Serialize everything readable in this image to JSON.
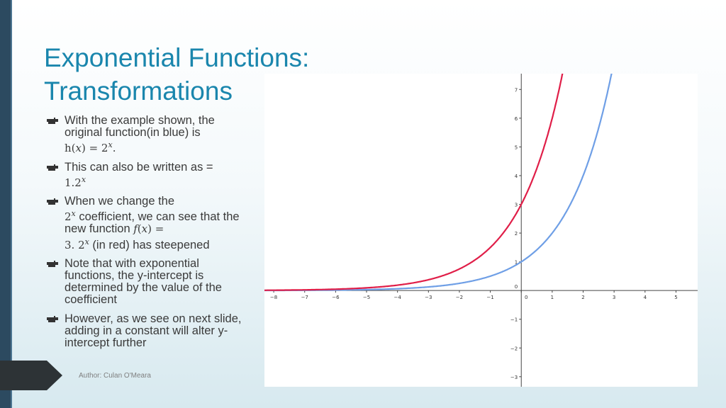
{
  "slide": {
    "title_lines": [
      "Exponential Functions:",
      "Transformations"
    ],
    "author": "Author: Culan O'Meara",
    "bullets": [
      {
        "text": "With the example shown, the original function(in blue) is",
        "math": "h(𝑥) = 2",
        "math_sup": "𝑥",
        "math_after": "."
      },
      {
        "text": "This can also be written as = ",
        "math": "1.2",
        "math_sup": "𝑥",
        "math_after": ""
      },
      {
        "parts": [
          "When we change the ",
          "2",
          "𝑥",
          " coefficient, we can see that the new function ",
          "𝑓(𝑥) =",
          " 3. 2",
          "𝑥",
          " (in red) has steepened"
        ]
      },
      {
        "text": "Note that with exponential functions, the y-intercept is determined by the value of the coefficient"
      },
      {
        "text": "However, as we see on next slide, adding in a constant will alter y-intercept further"
      }
    ]
  },
  "colors": {
    "accent": "#1a86ad",
    "sidebar": "#2c4a60",
    "blue_curve": "#6f9fe6",
    "red_curve": "#e01e48"
  },
  "icons": {
    "bullet": "hand-pointing-right-icon"
  },
  "chart_data": {
    "type": "line",
    "x_ticks": [
      "−8",
      "−7",
      "−6",
      "−5",
      "−4",
      "−3",
      "−2",
      "−1",
      "0",
      "1",
      "2",
      "3",
      "4",
      "5"
    ],
    "y_ticks": [
      "−3",
      "−2",
      "−1",
      "0",
      "1",
      "2",
      "3",
      "4",
      "5",
      "6",
      "7"
    ],
    "xlim": [
      -8.3,
      5.7
    ],
    "ylim": [
      -3.35,
      7.55
    ],
    "grid": false,
    "series": [
      {
        "name": "h(x) = 2^x",
        "color": "#6f9fe6",
        "coefficient": 1,
        "base": 2
      },
      {
        "name": "f(x) = 3.2^x",
        "color": "#e01e48",
        "coefficient": 3,
        "base": 2
      }
    ]
  }
}
